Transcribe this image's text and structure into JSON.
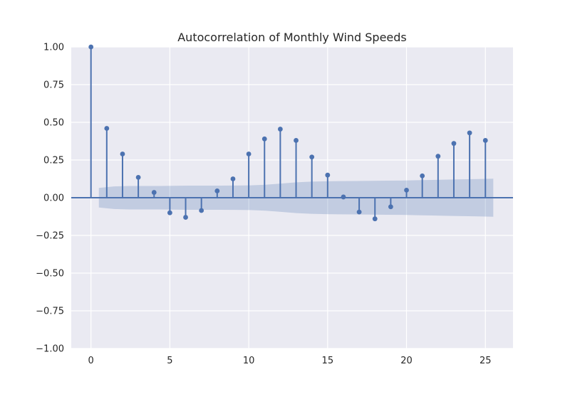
{
  "chart_data": {
    "type": "stem",
    "title": "Autocorrelation of Monthly Wind Speeds",
    "xlabel": "",
    "ylabel": "",
    "xlim": [
      -1.25,
      26.75
    ],
    "ylim": [
      -1.0,
      1.0
    ],
    "grid": true,
    "xticks": [
      0,
      5,
      10,
      15,
      20,
      25
    ],
    "yticks": [
      -1.0,
      -0.75,
      -0.5,
      -0.25,
      0.0,
      0.25,
      0.5,
      0.75,
      1.0
    ],
    "xtick_labels": [
      "0",
      "5",
      "10",
      "15",
      "20",
      "25"
    ],
    "ytick_labels": [
      "−1.00",
      "−0.75",
      "−0.50",
      "−0.25",
      "0.00",
      "0.25",
      "0.50",
      "0.75",
      "1.00"
    ],
    "lags": [
      0,
      1,
      2,
      3,
      4,
      5,
      6,
      7,
      8,
      9,
      10,
      11,
      12,
      13,
      14,
      15,
      16,
      17,
      18,
      19,
      20,
      21,
      22,
      23,
      24,
      25
    ],
    "acf": [
      1.0,
      0.46,
      0.29,
      0.135,
      0.035,
      -0.1,
      -0.13,
      -0.085,
      0.045,
      0.125,
      0.29,
      0.39,
      0.455,
      0.38,
      0.27,
      0.15,
      0.005,
      -0.095,
      -0.14,
      -0.06,
      0.05,
      0.145,
      0.275,
      0.36,
      0.43,
      0.38
    ],
    "confidence_band": {
      "lag_start": 0.5,
      "lag_end": 25.5,
      "upper": [
        0.065,
        0.075,
        0.078,
        0.078,
        0.078,
        0.079,
        0.08,
        0.08,
        0.08,
        0.081,
        0.082,
        0.086,
        0.094,
        0.102,
        0.107,
        0.109,
        0.11,
        0.111,
        0.112,
        0.113,
        0.114,
        0.116,
        0.118,
        0.12,
        0.122,
        0.124,
        0.126
      ],
      "lower": [
        -0.065,
        -0.075,
        -0.078,
        -0.078,
        -0.078,
        -0.079,
        -0.08,
        -0.08,
        -0.08,
        -0.081,
        -0.082,
        -0.086,
        -0.094,
        -0.102,
        -0.107,
        -0.109,
        -0.11,
        -0.111,
        -0.112,
        -0.113,
        -0.114,
        -0.116,
        -0.118,
        -0.12,
        -0.122,
        -0.124,
        -0.126
      ]
    },
    "colors": {
      "background": "#eaeaf2",
      "grid": "#ffffff",
      "stem": "#4c72b0",
      "band": "#4c72b0"
    }
  }
}
